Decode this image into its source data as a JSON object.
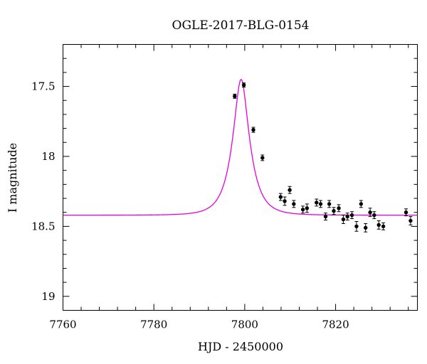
{
  "chart_data": {
    "type": "scatter",
    "title": "OGLE-2017-BLG-0154",
    "xlabel": "HJD - 2450000",
    "ylabel": "I magnitude",
    "xlim": [
      7760,
      7838
    ],
    "ylim": [
      19.1,
      17.2
    ],
    "y_inverted": true,
    "grid": false,
    "x_ticks": [
      {
        "value": 7760,
        "label": "7760"
      },
      {
        "value": 7780,
        "label": "7780"
      },
      {
        "value": 7800,
        "label": "7800"
      },
      {
        "value": 7820,
        "label": "7820"
      }
    ],
    "y_ticks": [
      {
        "value": 17.5,
        "label": "17.5"
      },
      {
        "value": 18,
        "label": "18"
      },
      {
        "value": 18.5,
        "label": "18.5"
      },
      {
        "value": 19,
        "label": "19"
      }
    ],
    "model": {
      "color": "#e600e6",
      "t0": 7799.2,
      "u0": 0.4,
      "tE": 3.5,
      "baseline_mag": 18.42
    },
    "points": [
      {
        "x": 7797.8,
        "y": 17.57,
        "err": 0.015
      },
      {
        "x": 7799.8,
        "y": 17.49,
        "err": 0.015
      },
      {
        "x": 7801.9,
        "y": 17.81,
        "err": 0.018
      },
      {
        "x": 7803.9,
        "y": 18.01,
        "err": 0.02
      },
      {
        "x": 7807.9,
        "y": 18.29,
        "err": 0.025
      },
      {
        "x": 7808.8,
        "y": 18.32,
        "err": 0.03
      },
      {
        "x": 7809.9,
        "y": 18.24,
        "err": 0.025
      },
      {
        "x": 7810.8,
        "y": 18.34,
        "err": 0.025
      },
      {
        "x": 7812.8,
        "y": 18.38,
        "err": 0.025
      },
      {
        "x": 7813.7,
        "y": 18.37,
        "err": 0.03
      },
      {
        "x": 7815.8,
        "y": 18.33,
        "err": 0.025
      },
      {
        "x": 7816.7,
        "y": 18.34,
        "err": 0.025
      },
      {
        "x": 7817.8,
        "y": 18.43,
        "err": 0.025
      },
      {
        "x": 7818.6,
        "y": 18.34,
        "err": 0.025
      },
      {
        "x": 7819.6,
        "y": 18.39,
        "err": 0.025
      },
      {
        "x": 7820.7,
        "y": 18.37,
        "err": 0.025
      },
      {
        "x": 7821.7,
        "y": 18.45,
        "err": 0.03
      },
      {
        "x": 7822.6,
        "y": 18.43,
        "err": 0.025
      },
      {
        "x": 7823.6,
        "y": 18.42,
        "err": 0.025
      },
      {
        "x": 7824.6,
        "y": 18.5,
        "err": 0.035
      },
      {
        "x": 7825.6,
        "y": 18.34,
        "err": 0.025
      },
      {
        "x": 7826.6,
        "y": 18.51,
        "err": 0.03
      },
      {
        "x": 7827.6,
        "y": 18.4,
        "err": 0.03
      },
      {
        "x": 7828.5,
        "y": 18.42,
        "err": 0.025
      },
      {
        "x": 7829.5,
        "y": 18.49,
        "err": 0.03
      },
      {
        "x": 7830.5,
        "y": 18.5,
        "err": 0.025
      },
      {
        "x": 7835.5,
        "y": 18.4,
        "err": 0.025
      },
      {
        "x": 7836.5,
        "y": 18.46,
        "err": 0.03
      }
    ]
  }
}
